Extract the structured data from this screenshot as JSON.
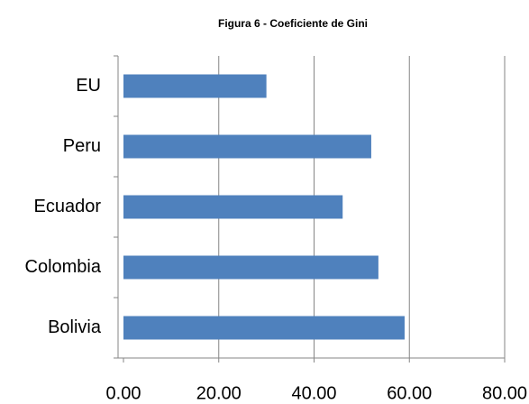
{
  "chart_data": {
    "type": "hbar",
    "title": "Figura 6 - Coeficiente de Gini",
    "categories": [
      "Bolivia",
      "Colombia",
      "Ecuador",
      "Peru",
      "EU"
    ],
    "values": [
      59,
      53.5,
      46,
      52,
      30
    ],
    "color": "#4f81bd",
    "xlim": [
      0,
      80
    ],
    "xticks": [
      {
        "value": 0,
        "label": "0.00"
      },
      {
        "value": 20,
        "label": "20.00"
      },
      {
        "value": 40,
        "label": "40.00"
      },
      {
        "value": 60,
        "label": "60.00"
      },
      {
        "value": 80,
        "label": "80.00"
      }
    ],
    "grid": true
  }
}
